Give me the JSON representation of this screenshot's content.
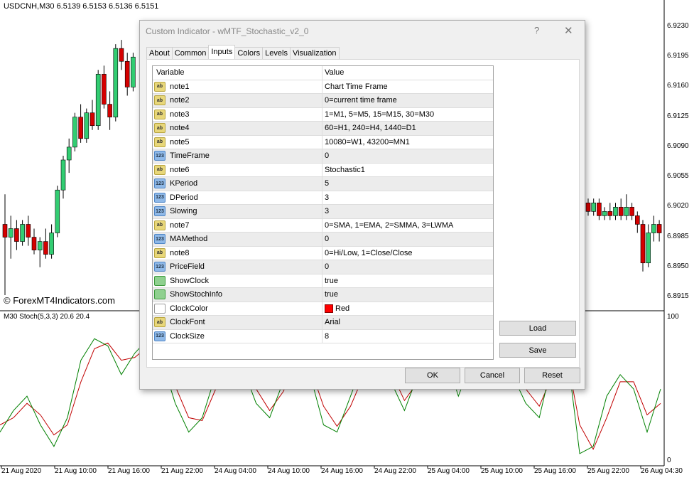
{
  "chart": {
    "symbol_info": "USDCNH,M30  6.5139 6.5153 6.5136 6.5151",
    "watermark": "© ForexMT4Indicators.com",
    "stoch_info": "M30 Stoch(5,3,3) 20.6 20.4",
    "price_ticks": [
      "6.9230",
      "6.9195",
      "6.9160",
      "6.9125",
      "6.9090",
      "6.9055",
      "6.9020",
      "6.8985",
      "6.8950",
      "6.8915"
    ],
    "stoch_ticks": [
      "100",
      "0"
    ],
    "time_ticks": [
      "21 Aug 2020",
      "21 Aug 10:00",
      "21 Aug 16:00",
      "21 Aug 22:00",
      "24 Aug 04:00",
      "24 Aug 10:00",
      "24 Aug 16:00",
      "24 Aug 22:00",
      "25 Aug 04:00",
      "25 Aug 10:00",
      "25 Aug 16:00",
      "25 Aug 22:00",
      "26 Aug 04:30"
    ],
    "bull_color": "#32cd72",
    "bear_color": "#d40000",
    "candles_left": [
      [
        6.9,
        6.9035,
        6.8915,
        6.8985
      ],
      [
        6.8985,
        6.901,
        6.896,
        6.8995
      ],
      [
        6.8995,
        6.9005,
        6.897,
        6.898
      ],
      [
        6.898,
        6.9005,
        6.8975,
        6.9
      ],
      [
        6.9,
        6.901,
        6.8975,
        6.8985
      ],
      [
        6.8985,
        6.8995,
        6.8965,
        6.897
      ],
      [
        6.897,
        6.8985,
        6.895,
        6.898
      ],
      [
        6.898,
        6.8995,
        6.896,
        6.8965
      ],
      [
        6.8965,
        6.9,
        6.896,
        6.899
      ],
      [
        6.899,
        6.9045,
        6.8985,
        6.904
      ],
      [
        6.904,
        6.908,
        6.903,
        6.9075
      ],
      [
        6.9075,
        6.91,
        6.906,
        6.909
      ],
      [
        6.909,
        6.913,
        6.9085,
        6.9125
      ],
      [
        6.9125,
        6.914,
        6.9095,
        6.91
      ],
      [
        6.91,
        6.9135,
        6.9095,
        6.913
      ],
      [
        6.913,
        6.9145,
        6.911,
        6.9115
      ],
      [
        6.9115,
        6.918,
        6.911,
        6.9175
      ],
      [
        6.9175,
        6.9185,
        6.9135,
        6.914
      ],
      [
        6.914,
        6.9155,
        6.911,
        6.9125
      ],
      [
        6.9125,
        6.921,
        6.912,
        6.9205
      ],
      [
        6.9205,
        6.9215,
        6.918,
        6.919
      ],
      [
        6.919,
        6.92,
        6.915,
        6.916
      ],
      [
        6.916,
        6.92,
        6.9155,
        6.9195
      ]
    ],
    "candles_right": [
      [
        6.9025,
        6.903,
        6.901,
        6.9015
      ],
      [
        6.9015,
        6.903,
        6.901,
        6.9025
      ],
      [
        6.9025,
        6.903,
        6.9005,
        6.901
      ],
      [
        6.901,
        6.902,
        6.9005,
        6.9015
      ],
      [
        6.9015,
        6.9025,
        6.9005,
        6.901
      ],
      [
        6.901,
        6.9025,
        6.9005,
        6.902
      ],
      [
        6.902,
        6.903,
        6.9005,
        6.901
      ],
      [
        6.901,
        6.9035,
        6.9005,
        6.902
      ],
      [
        6.902,
        6.9025,
        6.9005,
        6.901
      ],
      [
        6.901,
        6.9015,
        6.899,
        6.9
      ],
      [
        6.9,
        6.9005,
        6.8945,
        6.8955
      ],
      [
        6.8955,
        6.9,
        6.895,
        6.899
      ],
      [
        6.899,
        6.901,
        6.898,
        6.9
      ],
      [
        6.9,
        6.9005,
        6.898,
        6.899
      ]
    ],
    "stoch_main": [
      20,
      35,
      45,
      25,
      10,
      30,
      70,
      85,
      80,
      60,
      75,
      85,
      70,
      40,
      20,
      30,
      60,
      80,
      65,
      40,
      30,
      55,
      75,
      60,
      25,
      20,
      45,
      70,
      80,
      55,
      35,
      60,
      80,
      75,
      45,
      70,
      90,
      85,
      60,
      40,
      30,
      70,
      80,
      5,
      10,
      45,
      60,
      50,
      20,
      50
    ],
    "stoch_signal": [
      25,
      30,
      40,
      32,
      18,
      25,
      55,
      78,
      82,
      70,
      72,
      80,
      75,
      52,
      30,
      28,
      50,
      72,
      70,
      50,
      35,
      48,
      68,
      65,
      38,
      24,
      38,
      60,
      75,
      62,
      42,
      55,
      72,
      75,
      58,
      65,
      82,
      85,
      70,
      50,
      38,
      60,
      75,
      25,
      8,
      30,
      55,
      55,
      32,
      40
    ]
  },
  "dialog": {
    "title": "Custom Indicator - wMTF_Stochastic_v2_0",
    "help": "?",
    "close": "✕",
    "tabs": [
      "About",
      "Common",
      "Inputs",
      "Colors",
      "Levels",
      "Visualization"
    ],
    "columns": [
      "Variable",
      "Value"
    ],
    "rows": [
      {
        "type": "ab",
        "name": "note1",
        "value": "Chart Time Frame"
      },
      {
        "type": "ab",
        "name": "note2",
        "value": "0=current time frame"
      },
      {
        "type": "ab",
        "name": "note3",
        "value": "1=M1, 5=M5, 15=M15, 30=M30"
      },
      {
        "type": "ab",
        "name": "note4",
        "value": "60=H1, 240=H4, 1440=D1"
      },
      {
        "type": "ab",
        "name": "note5",
        "value": "10080=W1, 43200=MN1"
      },
      {
        "type": "n",
        "name": "TimeFrame",
        "value": "0"
      },
      {
        "type": "ab",
        "name": "note6",
        "value": "Stochastic1"
      },
      {
        "type": "n",
        "name": "KPeriod",
        "value": "5"
      },
      {
        "type": "n",
        "name": "DPeriod",
        "value": "3"
      },
      {
        "type": "n",
        "name": "Slowing",
        "value": "3"
      },
      {
        "type": "ab",
        "name": "note7",
        "value": "0=SMA, 1=EMA, 2=SMMA, 3=LWMA"
      },
      {
        "type": "n",
        "name": "MAMethod",
        "value": "0"
      },
      {
        "type": "ab",
        "name": "note8",
        "value": "0=Hi/Low, 1=Close/Close"
      },
      {
        "type": "n",
        "name": "PriceField",
        "value": "0"
      },
      {
        "type": "b",
        "name": "ShowClock",
        "value": "true"
      },
      {
        "type": "b",
        "name": "ShowStochInfo",
        "value": "true"
      },
      {
        "type": "c",
        "name": "ClockColor",
        "value": "Red",
        "color": "#ff0000"
      },
      {
        "type": "ab",
        "name": "ClockFont",
        "value": "Arial"
      },
      {
        "type": "n",
        "name": "ClockSize",
        "value": "8"
      }
    ],
    "icon_text": {
      "ab": "ab",
      "n": "123",
      "b": "",
      "c": ""
    },
    "load": "Load",
    "save": "Save",
    "ok": "OK",
    "cancel": "Cancel",
    "reset": "Reset"
  }
}
